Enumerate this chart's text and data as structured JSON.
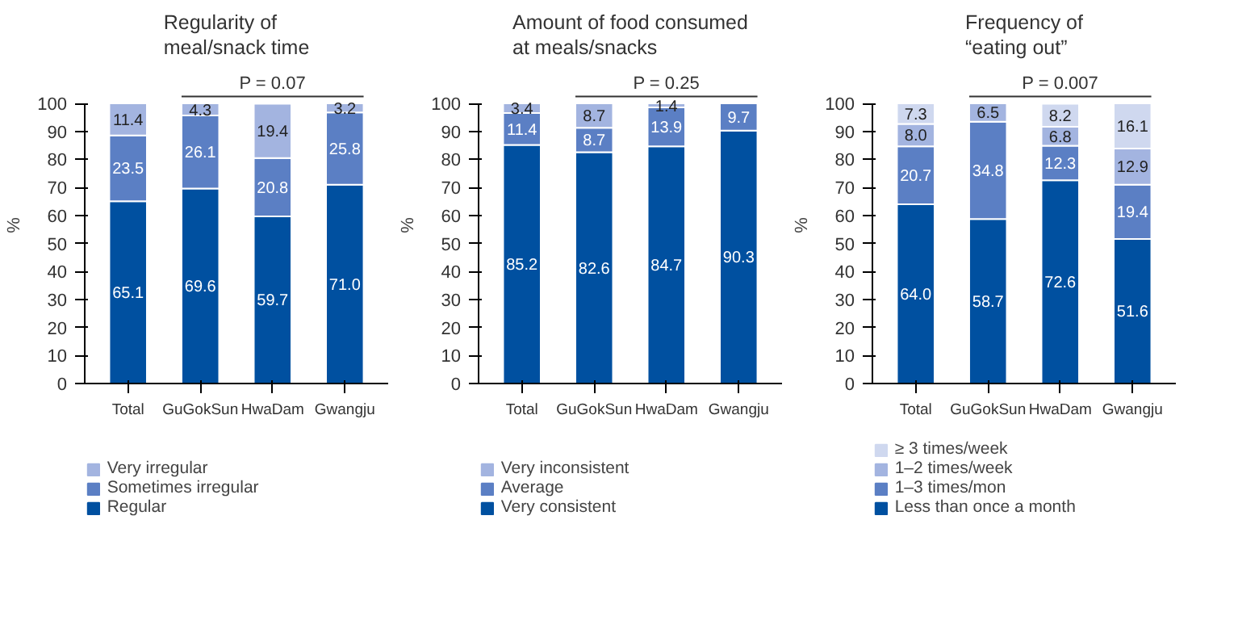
{
  "chart_data": [
    {
      "type": "bar",
      "stacked": true,
      "title": "Regularity of\nmeal/snack time",
      "ylabel": "%",
      "categories": [
        "Total",
        "GuGokSun",
        "HwaDam",
        "Gwangju"
      ],
      "ylim": [
        0,
        100
      ],
      "yticks": [
        0,
        10,
        20,
        30,
        40,
        50,
        60,
        70,
        80,
        90,
        100
      ],
      "legend": "bottom",
      "annotations": [
        "P = 0.07"
      ],
      "series": [
        {
          "name": "Regular",
          "color": "#0050a0",
          "values": [
            65.1,
            69.6,
            59.7,
            71.0
          ],
          "value_labels": [
            "65.1",
            "69.6",
            "59.7",
            "71.0"
          ]
        },
        {
          "name": "Sometimes irregular",
          "color": "#5b7fc4",
          "values": [
            23.5,
            26.1,
            20.8,
            25.8
          ],
          "value_labels": [
            "23.5",
            "26.1",
            "20.8",
            "25.8"
          ]
        },
        {
          "name": "Very irregular",
          "color": "#a3b4e0",
          "values": [
            11.4,
            4.3,
            19.4,
            3.2
          ],
          "value_labels": [
            "11.4",
            "4.3",
            "19.4",
            "3.2"
          ]
        }
      ]
    },
    {
      "type": "bar",
      "stacked": true,
      "title": "Amount of food consumed\nat meals/snacks",
      "ylabel": "%",
      "categories": [
        "Total",
        "GuGokSun",
        "HwaDam",
        "Gwangju"
      ],
      "ylim": [
        0,
        100
      ],
      "yticks": [
        0,
        10,
        20,
        30,
        40,
        50,
        60,
        70,
        80,
        90,
        100
      ],
      "legend": "bottom",
      "annotations": [
        "P = 0.25"
      ],
      "series": [
        {
          "name": "Very consistent",
          "color": "#0050a0",
          "values": [
            85.2,
            82.6,
            84.7,
            90.3
          ],
          "value_labels": [
            "85.2",
            "82.6",
            "84.7",
            "90.3"
          ]
        },
        {
          "name": "Average",
          "color": "#5b7fc4",
          "values": [
            11.4,
            8.7,
            13.9,
            9.7
          ],
          "value_labels": [
            "11.4",
            "8.7",
            "13.9",
            "9.7"
          ]
        },
        {
          "name": "Very inconsistent",
          "color": "#a3b4e0",
          "values": [
            3.4,
            8.7,
            1.4,
            null
          ],
          "value_labels": [
            "3.4",
            "8.7",
            "1.4",
            null
          ]
        }
      ]
    },
    {
      "type": "bar",
      "stacked": true,
      "title": "Frequency of\n“eating out”",
      "ylabel": "%",
      "categories": [
        "Total",
        "GuGokSun",
        "HwaDam",
        "Gwangju"
      ],
      "ylim": [
        0,
        100
      ],
      "yticks": [
        0,
        10,
        20,
        30,
        40,
        50,
        60,
        70,
        80,
        90,
        100
      ],
      "legend": "bottom",
      "annotations": [
        "P = 0.007"
      ],
      "series": [
        {
          "name": "Less than once a month",
          "color": "#0050a0",
          "values": [
            64.0,
            58.7,
            72.6,
            51.6
          ],
          "value_labels": [
            "64.0",
            "58.7",
            "72.6",
            "51.6"
          ]
        },
        {
          "name": "1–3 times/mon",
          "color": "#5b7fc4",
          "values": [
            20.7,
            34.8,
            12.3,
            19.4
          ],
          "value_labels": [
            "20.7",
            "34.8",
            "12.3",
            "19.4"
          ]
        },
        {
          "name": "1–2 times/week",
          "color": "#a3b4e0",
          "values": [
            8.0,
            6.5,
            6.8,
            12.9
          ],
          "value_labels": [
            "8.0",
            "6.5",
            "6.8",
            "12.9"
          ]
        },
        {
          "name": "≥ 3 times/week",
          "color": "#cfd8ef",
          "values": [
            7.3,
            null,
            8.2,
            16.1
          ],
          "value_labels": [
            "7.3",
            null,
            "8.2",
            "16.1"
          ]
        }
      ]
    }
  ]
}
